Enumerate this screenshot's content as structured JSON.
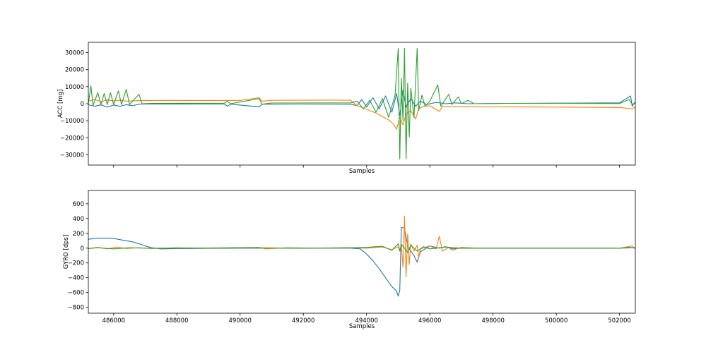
{
  "chart_data": [
    {
      "type": "line",
      "ylabel": "ACC [mg]",
      "xlabel": "Samples",
      "show_xtick_labels": false,
      "xlim": [
        485200,
        502500
      ],
      "ylim": [
        -36000,
        36000
      ],
      "xticks": [
        486000,
        488000,
        490000,
        492000,
        494000,
        496000,
        498000,
        500000,
        502000
      ],
      "yticks": [
        -30000,
        -20000,
        -10000,
        0,
        10000,
        20000,
        30000
      ],
      "grid": false,
      "series": [
        {
          "color": "#1f77b4",
          "points": [
            [
              485200,
              -600
            ],
            [
              485400,
              -1500
            ],
            [
              485600,
              -700
            ],
            [
              485800,
              -2000
            ],
            [
              486000,
              -800
            ],
            [
              486200,
              -1500
            ],
            [
              486400,
              -600
            ],
            [
              486600,
              -1200
            ],
            [
              486800,
              -300
            ],
            [
              487000,
              -200
            ],
            [
              489500,
              -200
            ],
            [
              489600,
              -1500
            ],
            [
              489700,
              -300
            ],
            [
              490600,
              -1800
            ],
            [
              490700,
              -300
            ],
            [
              491800,
              -200
            ],
            [
              493500,
              -300
            ],
            [
              493700,
              -1200
            ],
            [
              493850,
              2500
            ],
            [
              494000,
              -2000
            ],
            [
              494200,
              3500
            ],
            [
              494400,
              -3000
            ],
            [
              494600,
              4500
            ],
            [
              494800,
              -5000
            ],
            [
              494950,
              6000
            ],
            [
              495050,
              -7000
            ],
            [
              495150,
              8000
            ],
            [
              495250,
              -2000
            ],
            [
              495400,
              3000
            ],
            [
              495550,
              -1500
            ],
            [
              495700,
              1500
            ],
            [
              495900,
              -500
            ],
            [
              496200,
              800
            ],
            [
              496500,
              0
            ],
            [
              496800,
              500
            ],
            [
              497200,
              0
            ],
            [
              498500,
              200
            ],
            [
              500000,
              300
            ],
            [
              502000,
              500
            ],
            [
              502350,
              4500
            ],
            [
              502400,
              -1500
            ],
            [
              502500,
              1200
            ]
          ]
        },
        {
          "color": "#ff7f0e",
          "points": [
            [
              485200,
              1500
            ],
            [
              485400,
              2400
            ],
            [
              485600,
              1200
            ],
            [
              485800,
              2200
            ],
            [
              486000,
              1600
            ],
            [
              486200,
              2100
            ],
            [
              486400,
              1500
            ],
            [
              486800,
              1800
            ],
            [
              487500,
              1900
            ],
            [
              490000,
              1900
            ],
            [
              490600,
              3500
            ],
            [
              490700,
              1500
            ],
            [
              491000,
              2000
            ],
            [
              493000,
              2100
            ],
            [
              493500,
              2000
            ],
            [
              493700,
              -1200
            ],
            [
              493900,
              -2500
            ],
            [
              494100,
              -4000
            ],
            [
              494300,
              -5500
            ],
            [
              494500,
              -7500
            ],
            [
              494700,
              -9500
            ],
            [
              494850,
              -12000
            ],
            [
              494950,
              -15000
            ],
            [
              495050,
              -8000
            ],
            [
              495150,
              -12500
            ],
            [
              495250,
              -6000
            ],
            [
              495400,
              -4000
            ],
            [
              495550,
              -9000
            ],
            [
              495650,
              -3000
            ],
            [
              495800,
              -1500
            ],
            [
              496000,
              -1200
            ],
            [
              496300,
              -4500
            ],
            [
              496400,
              -1500
            ],
            [
              496700,
              -1800
            ],
            [
              497200,
              -1800
            ],
            [
              498500,
              -1900
            ],
            [
              500000,
              -2000
            ],
            [
              502000,
              -2200
            ],
            [
              502400,
              -3000
            ],
            [
              502500,
              -1800
            ]
          ]
        },
        {
          "color": "#2ca02c",
          "points": [
            [
              485200,
              0
            ],
            [
              485280,
              10500
            ],
            [
              485350,
              -1000
            ],
            [
              485500,
              6500
            ],
            [
              485600,
              -500
            ],
            [
              485700,
              6000
            ],
            [
              485800,
              -500
            ],
            [
              485900,
              6500
            ],
            [
              486000,
              -500
            ],
            [
              486150,
              7500
            ],
            [
              486250,
              -500
            ],
            [
              486400,
              8500
            ],
            [
              486500,
              -500
            ],
            [
              486800,
              5500
            ],
            [
              486900,
              0
            ],
            [
              487200,
              200
            ],
            [
              489500,
              300
            ],
            [
              489600,
              1500
            ],
            [
              489700,
              0
            ],
            [
              490600,
              3000
            ],
            [
              490700,
              -300
            ],
            [
              491000,
              400
            ],
            [
              493500,
              500
            ],
            [
              493700,
              1500
            ],
            [
              493900,
              -3000
            ],
            [
              494100,
              2000
            ],
            [
              494300,
              -5000
            ],
            [
              494500,
              3000
            ],
            [
              494700,
              -8000
            ],
            [
              494900,
              5000
            ],
            [
              495000,
              32500
            ],
            [
              495050,
              -32500
            ],
            [
              495100,
              15000
            ],
            [
              495150,
              -10000
            ],
            [
              495200,
              32500
            ],
            [
              495250,
              -32500
            ],
            [
              495300,
              12000
            ],
            [
              495350,
              -19500
            ],
            [
              495400,
              9000
            ],
            [
              495500,
              -8000
            ],
            [
              495600,
              32500
            ],
            [
              495650,
              -4000
            ],
            [
              495750,
              5000
            ],
            [
              495850,
              -1500
            ],
            [
              496000,
              1500
            ],
            [
              496250,
              11000
            ],
            [
              496350,
              -1500
            ],
            [
              496600,
              5500
            ],
            [
              496700,
              -500
            ],
            [
              496900,
              4000
            ],
            [
              497000,
              0
            ],
            [
              497200,
              2000
            ],
            [
              497400,
              0
            ],
            [
              498500,
              200
            ],
            [
              500000,
              300
            ],
            [
              502000,
              100
            ],
            [
              502300,
              2500
            ],
            [
              502400,
              -300
            ],
            [
              502500,
              200
            ]
          ]
        }
      ]
    },
    {
      "type": "line",
      "ylabel": "GYRO [dps]",
      "xlabel": "Samples",
      "show_xtick_labels": true,
      "xlim": [
        485200,
        502500
      ],
      "ylim": [
        -880,
        780
      ],
      "xticks": [
        486000,
        488000,
        490000,
        492000,
        494000,
        496000,
        498000,
        500000,
        502000
      ],
      "xticklabels": [
        "486000",
        "488000",
        "490000",
        "492000",
        "494000",
        "496000",
        "498000",
        "500000",
        "502000"
      ],
      "yticks": [
        -800,
        -600,
        -400,
        -200,
        0,
        200,
        400,
        600
      ],
      "grid": false,
      "series": [
        {
          "color": "#1f77b4",
          "points": [
            [
              485200,
              120
            ],
            [
              485400,
              130
            ],
            [
              485600,
              135
            ],
            [
              485800,
              135
            ],
            [
              486000,
              130
            ],
            [
              486200,
              115
            ],
            [
              486400,
              100
            ],
            [
              486600,
              85
            ],
            [
              486800,
              60
            ],
            [
              487000,
              30
            ],
            [
              487200,
              5
            ],
            [
              487500,
              -10
            ],
            [
              488000,
              -5
            ],
            [
              490000,
              0
            ],
            [
              492000,
              0
            ],
            [
              493500,
              0
            ],
            [
              493800,
              -10
            ],
            [
              494000,
              -80
            ],
            [
              494200,
              -170
            ],
            [
              494400,
              -280
            ],
            [
              494600,
              -400
            ],
            [
              494800,
              -520
            ],
            [
              494950,
              -580
            ],
            [
              495000,
              -650
            ],
            [
              495050,
              -570
            ],
            [
              495100,
              280
            ],
            [
              495200,
              270
            ],
            [
              495300,
              20
            ],
            [
              495500,
              -100
            ],
            [
              495600,
              -190
            ],
            [
              495700,
              -50
            ],
            [
              496000,
              30
            ],
            [
              496300,
              0
            ],
            [
              496500,
              20
            ],
            [
              496700,
              -10
            ],
            [
              497000,
              0
            ],
            [
              498500,
              0
            ],
            [
              500000,
              0
            ],
            [
              502000,
              0
            ],
            [
              502300,
              10
            ],
            [
              502500,
              0
            ]
          ]
        },
        {
          "color": "#ff7f0e",
          "points": [
            [
              485200,
              -5
            ],
            [
              485500,
              10
            ],
            [
              485800,
              -10
            ],
            [
              486100,
              15
            ],
            [
              486400,
              -5
            ],
            [
              486800,
              5
            ],
            [
              487200,
              -5
            ],
            [
              488000,
              5
            ],
            [
              489000,
              0
            ],
            [
              490600,
              10
            ],
            [
              490800,
              -10
            ],
            [
              491500,
              5
            ],
            [
              492500,
              0
            ],
            [
              493500,
              5
            ],
            [
              494000,
              0
            ],
            [
              494500,
              15
            ],
            [
              494800,
              -20
            ],
            [
              495000,
              20
            ],
            [
              495050,
              -40
            ],
            [
              495100,
              50
            ],
            [
              495150,
              -260
            ],
            [
              495200,
              430
            ],
            [
              495250,
              -390
            ],
            [
              495300,
              190
            ],
            [
              495350,
              -220
            ],
            [
              495400,
              60
            ],
            [
              495500,
              -40
            ],
            [
              495600,
              40
            ],
            [
              495650,
              -130
            ],
            [
              495700,
              -10
            ],
            [
              496000,
              30
            ],
            [
              496200,
              -10
            ],
            [
              496300,
              160
            ],
            [
              496400,
              -40
            ],
            [
              496600,
              10
            ],
            [
              496700,
              -30
            ],
            [
              497000,
              10
            ],
            [
              497500,
              0
            ],
            [
              499000,
              0
            ],
            [
              500000,
              0
            ],
            [
              502000,
              0
            ],
            [
              502400,
              30
            ],
            [
              502500,
              -10
            ]
          ]
        },
        {
          "color": "#2ca02c",
          "points": [
            [
              485200,
              -5
            ],
            [
              485500,
              5
            ],
            [
              486000,
              -10
            ],
            [
              486500,
              5
            ],
            [
              487000,
              0
            ],
            [
              488000,
              0
            ],
            [
              490000,
              5
            ],
            [
              492000,
              0
            ],
            [
              493500,
              5
            ],
            [
              494000,
              10
            ],
            [
              494500,
              25
            ],
            [
              494800,
              -30
            ],
            [
              495000,
              60
            ],
            [
              495050,
              -40
            ],
            [
              495100,
              50
            ],
            [
              495200,
              0
            ],
            [
              495300,
              -60
            ],
            [
              495400,
              40
            ],
            [
              495600,
              -40
            ],
            [
              495800,
              20
            ],
            [
              496000,
              -10
            ],
            [
              496500,
              15
            ],
            [
              497000,
              0
            ],
            [
              498500,
              0
            ],
            [
              500000,
              0
            ],
            [
              502000,
              0
            ],
            [
              502500,
              5
            ]
          ]
        }
      ]
    }
  ]
}
